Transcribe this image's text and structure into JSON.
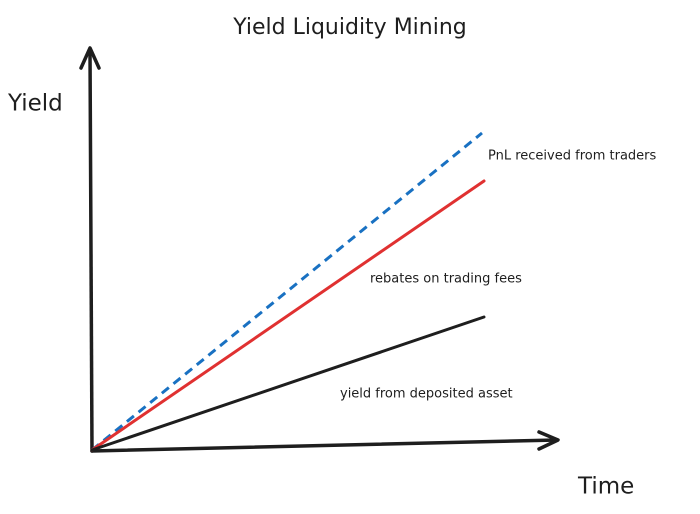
{
  "title": "Yield Liquidity Mining",
  "axes": {
    "y_label": "Yield",
    "x_label": "Time"
  },
  "lines": [
    {
      "label": "PnL received from traders"
    },
    {
      "label": "rebates on trading fees"
    },
    {
      "label": "yield from deposited asset"
    }
  ]
}
